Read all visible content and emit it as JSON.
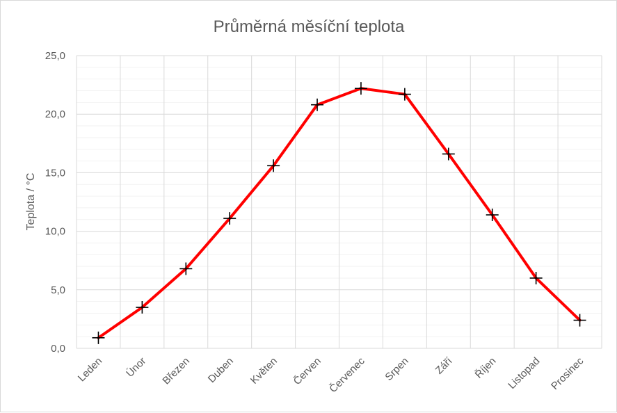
{
  "chart_data": {
    "type": "line",
    "title": "Průměrná měsíční teplota",
    "xlabel": "",
    "ylabel": "Teplota / °C",
    "categories": [
      "Leden",
      "Únor",
      "Březen",
      "Duben",
      "Květen",
      "Červen",
      "Červenec",
      "Srpen",
      "Září",
      "Říjen",
      "Listopad",
      "Prosinec"
    ],
    "series": [
      {
        "values": [
          0.9,
          3.5,
          6.8,
          11.1,
          15.6,
          20.8,
          22.2,
          21.7,
          16.6,
          11.4,
          6.0,
          2.4
        ]
      }
    ],
    "ylim": [
      0,
      25
    ],
    "yticks": [
      "0,0",
      "5,0",
      "10,0",
      "15,0",
      "20,0",
      "25,0"
    ],
    "grid": true,
    "legend": "none",
    "line_color": "#ff0000",
    "marker": "plus",
    "marker_color": "#000000"
  }
}
